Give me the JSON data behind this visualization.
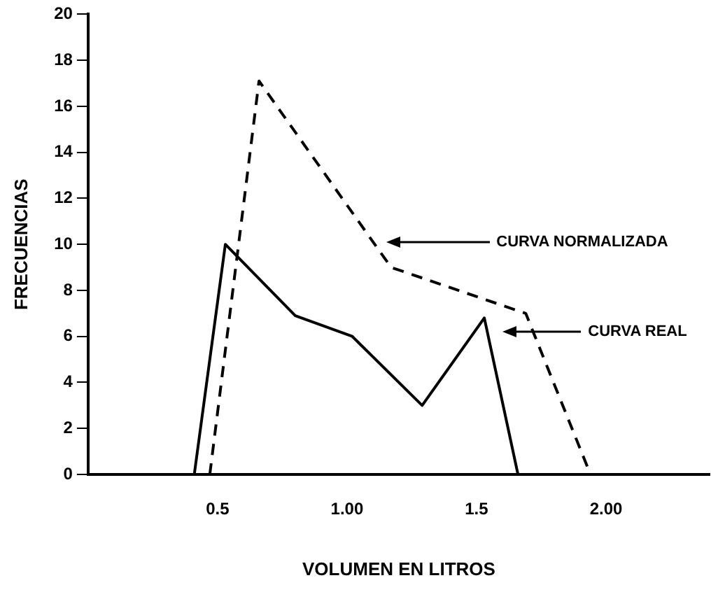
{
  "chart_data": {
    "type": "line",
    "xlabel": "VOLUMEN EN LITROS",
    "ylabel": "FRECUENCIAS",
    "xlim": [
      0,
      2.4
    ],
    "xticks": [
      0.5,
      {
        "value": 1,
        "label": "1.00"
      },
      1.5,
      {
        "value": 2,
        "label": "2.00"
      }
    ],
    "ylim": [
      0,
      20
    ],
    "yticks": [
      0,
      2,
      4,
      6,
      8,
      10,
      12,
      14,
      16,
      18,
      20
    ],
    "grid": false,
    "marker": "none",
    "legend": false,
    "annotations": [
      "CURVA NORMALIZADA",
      "CURVA REAL"
    ],
    "series": [
      {
        "color": "#000000",
        "line_style": "dashed",
        "x": [
          0.47,
          0.66,
          1.17,
          1.69,
          1.94
        ],
        "values": [
          0,
          17.1,
          9,
          7,
          0
        ]
      },
      {
        "color": "#000000",
        "line_style": "solid",
        "x": [
          0.41,
          0.53,
          0.8,
          1.02,
          1.29,
          1.53,
          1.66
        ],
        "values": [
          0,
          10,
          6.9,
          6,
          3,
          6.8,
          0
        ]
      }
    ]
  }
}
